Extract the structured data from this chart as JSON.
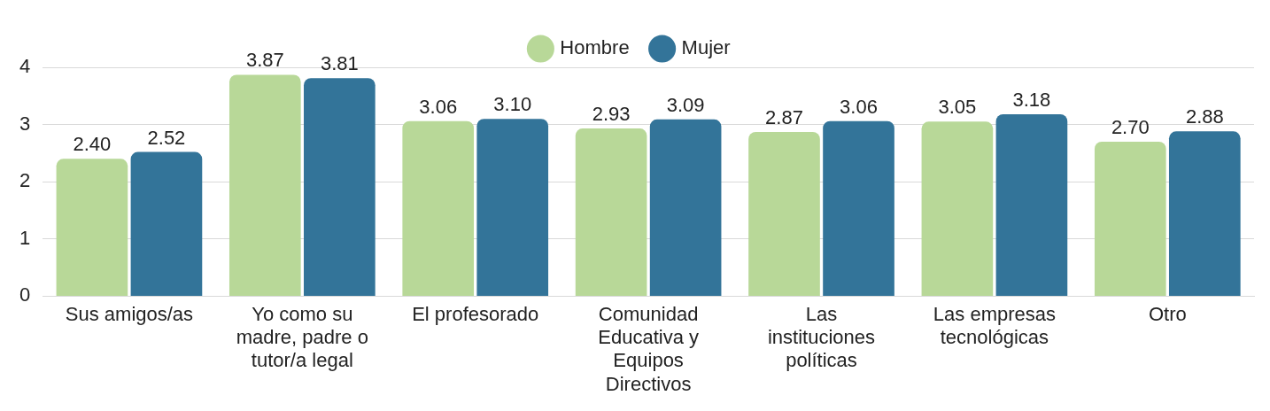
{
  "chart_data": {
    "type": "bar",
    "categories": [
      "Sus amigos/as",
      "Yo como su madre, padre o tutor/a legal",
      "El profesorado",
      "Comunidad Educativa y Equipos Directivos",
      "Las instituciones políticas",
      "Las empresas tecnológicas",
      "Otro"
    ],
    "series": [
      {
        "name": "Hombre",
        "color": "#b8d898",
        "values": [
          2.4,
          3.87,
          3.06,
          2.93,
          2.87,
          3.05,
          2.7
        ],
        "value_labels": [
          "2.40",
          "3.87",
          "3.06",
          "2.93",
          "2.87",
          "3.05",
          "2.70"
        ]
      },
      {
        "name": "Mujer",
        "color": "#337499",
        "values": [
          2.52,
          3.81,
          3.1,
          3.09,
          3.06,
          3.18,
          2.88
        ],
        "value_labels": [
          "2.52",
          "3.81",
          "3.10",
          "3.09",
          "3.06",
          "3.18",
          "2.88"
        ]
      }
    ],
    "ylim": [
      0,
      4
    ],
    "yticks": [
      0,
      1,
      2,
      3,
      4
    ],
    "grid": "y",
    "legend": "top"
  }
}
